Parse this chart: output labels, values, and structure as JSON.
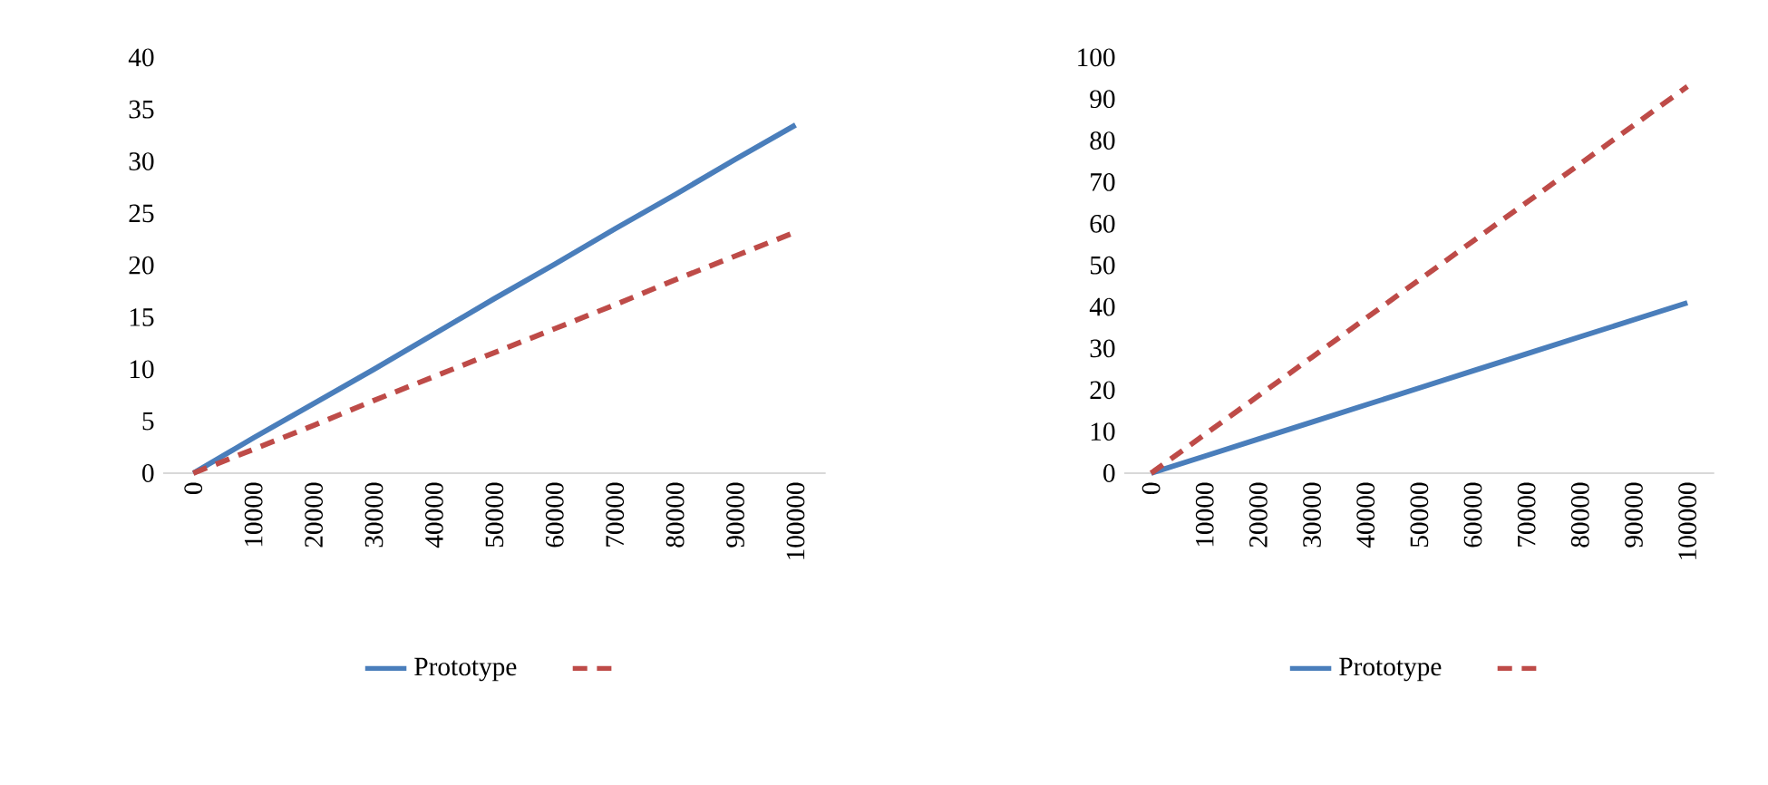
{
  "chart_data": [
    {
      "type": "line",
      "categories": [
        "0",
        "10000",
        "20000",
        "30000",
        "40000",
        "50000",
        "60000",
        "70000",
        "80000",
        "90000",
        "100000"
      ],
      "series": [
        {
          "name": "Prototype",
          "color": "#4a7ebb",
          "line_style": "solid",
          "values": [
            0,
            3.4,
            6.7,
            10,
            13.4,
            16.8,
            20.1,
            23.5,
            26.8,
            30.2,
            33.5
          ]
        },
        {
          "color": "#be4b48",
          "line_style": "dashed",
          "values": [
            0,
            2.3,
            4.6,
            7,
            9.3,
            11.6,
            13.9,
            16.2,
            18.6,
            20.9,
            23.2
          ]
        }
      ],
      "ylim": [
        0,
        40
      ],
      "yticks": [
        0,
        5,
        10,
        15,
        20,
        25,
        30,
        35,
        40
      ],
      "legend": "bottom",
      "grid": false,
      "marker": "none"
    },
    {
      "type": "line",
      "categories": [
        "0",
        "10000",
        "20000",
        "30000",
        "40000",
        "50000",
        "60000",
        "70000",
        "80000",
        "90000",
        "100000"
      ],
      "series": [
        {
          "name": "Prototype",
          "color": "#4a7ebb",
          "line_style": "solid",
          "values": [
            0,
            4.1,
            8.2,
            12.3,
            16.4,
            20.5,
            24.6,
            28.7,
            32.8,
            36.9,
            41
          ]
        },
        {
          "color": "#be4b48",
          "line_style": "dashed",
          "values": [
            0,
            9.3,
            18.6,
            27.9,
            37.2,
            46.5,
            55.8,
            65.1,
            74.4,
            83.7,
            93
          ]
        }
      ],
      "ylim": [
        0,
        100
      ],
      "yticks": [
        0,
        10,
        20,
        30,
        40,
        50,
        60,
        70,
        80,
        90,
        100
      ],
      "legend": "bottom",
      "grid": false,
      "marker": "none"
    }
  ]
}
